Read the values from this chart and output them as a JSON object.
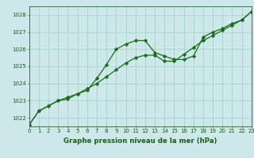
{
  "line1_x": [
    0,
    1,
    2,
    3,
    4,
    5,
    6,
    7,
    8,
    9,
    10,
    11,
    12,
    13,
    14,
    15,
    16,
    17,
    18,
    19,
    20,
    21,
    22,
    23
  ],
  "line1_y": [
    1021.6,
    1022.4,
    1022.7,
    1023.0,
    1023.1,
    1023.4,
    1023.6,
    1024.3,
    1025.1,
    1026.0,
    1026.3,
    1026.5,
    1026.5,
    1025.8,
    1025.6,
    1025.4,
    1025.4,
    1025.6,
    1026.7,
    1027.0,
    1027.2,
    1027.5,
    1027.7,
    1028.2
  ],
  "line2_x": [
    0,
    1,
    2,
    3,
    4,
    5,
    6,
    7,
    8,
    9,
    10,
    11,
    12,
    13,
    14,
    15,
    16,
    17,
    18,
    19,
    20,
    21,
    22,
    23
  ],
  "line2_y": [
    1021.6,
    1022.4,
    1022.7,
    1023.0,
    1023.2,
    1023.4,
    1023.7,
    1024.0,
    1024.4,
    1024.8,
    1025.2,
    1025.5,
    1025.65,
    1025.65,
    1025.3,
    1025.3,
    1025.7,
    1026.1,
    1026.5,
    1026.8,
    1027.1,
    1027.4,
    1027.7,
    1028.2
  ],
  "line_color": "#1a6b1a",
  "marker": "D",
  "marker_size": 2.2,
  "title": "Graphe pression niveau de la mer (hPa)",
  "xlim": [
    0,
    23
  ],
  "ylim": [
    1021.5,
    1028.5
  ],
  "yticks": [
    1022,
    1023,
    1024,
    1025,
    1026,
    1027,
    1028
  ],
  "xticks": [
    0,
    1,
    2,
    3,
    4,
    5,
    6,
    7,
    8,
    9,
    10,
    11,
    12,
    13,
    14,
    15,
    16,
    17,
    18,
    19,
    20,
    21,
    22,
    23
  ],
  "bg_color": "#cce8e8",
  "grid_color": "#99c4c4",
  "title_color": "#1a5c1a",
  "axis_color": "#1a6b1a",
  "tick_fontsize": 5.0,
  "title_fontsize": 6.2
}
